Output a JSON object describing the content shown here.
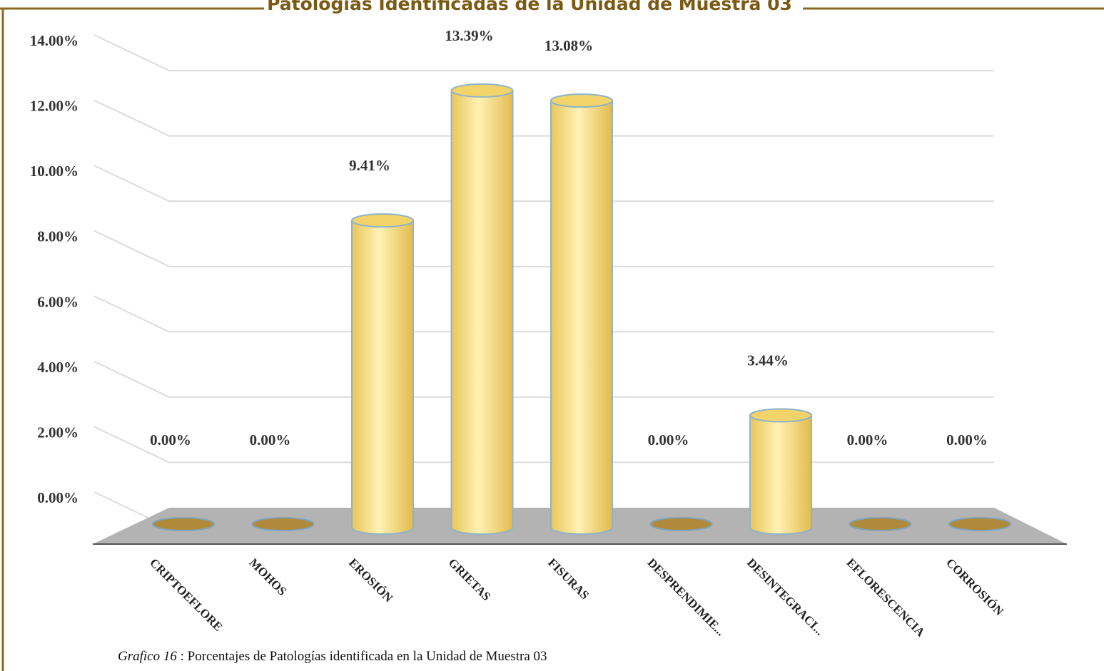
{
  "chart_data": {
    "type": "bar",
    "title": "Patologías Identificadas de la Unidad de Muestra 03",
    "categories": [
      "CRIPTOEFLORE",
      "MOHOS",
      "EROSIÓN",
      "GRIETAS",
      "FISURAS",
      "DESPRENDIMIE...",
      "DESINTEGRACI...",
      "EFLORESCENCIA",
      "CORROSIÓN"
    ],
    "values": [
      0,
      0,
      9.41,
      13.39,
      13.08,
      0,
      3.44,
      0,
      0
    ],
    "value_labels": [
      "0.00%",
      "0.00%",
      "9.41%",
      "13.39%",
      "13.08%",
      "0.00%",
      "3.44%",
      "0.00%",
      "0.00%"
    ],
    "color": "#f5d873",
    "ylim": [
      0,
      14
    ],
    "yticks": [
      {
        "value": 0,
        "label": "0.00%"
      },
      {
        "value": 2,
        "label": "2.00%"
      },
      {
        "value": 4,
        "label": "4.00%"
      },
      {
        "value": 6,
        "label": "6.00%"
      },
      {
        "value": 8,
        "label": "8.00%"
      },
      {
        "value": 10,
        "label": "10.00%"
      },
      {
        "value": 12,
        "label": "12.00%"
      },
      {
        "value": 14,
        "label": "14.00%"
      }
    ],
    "grid": true
  },
  "caption": {
    "label": "Grafico 16",
    "text": " : Porcentajes de Patologías identificada en la Unidad de Muestra 03"
  }
}
